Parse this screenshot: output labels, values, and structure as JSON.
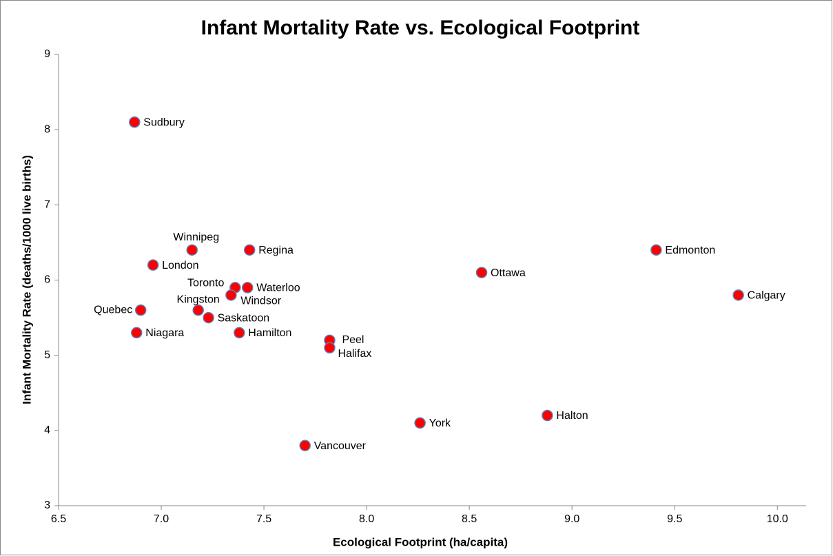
{
  "chart_data": {
    "type": "scatter",
    "title": "Infant Mortality Rate vs. Ecological Footprint",
    "x_label": "Ecological Footprint (ha/capita)",
    "y_label": "Infant Mortality Rate (deaths/1000 live births)",
    "xlim": [
      6.5,
      10.14
    ],
    "ylim": [
      3,
      9
    ],
    "xticks": [
      6.5,
      {
        "value": 7,
        "label": "7.0"
      },
      7.5,
      {
        "value": 8,
        "label": "8.0"
      },
      8.5,
      {
        "value": 9,
        "label": "9.0"
      },
      9.5,
      {
        "value": 10,
        "label": "10.0"
      }
    ],
    "yticks": [
      3,
      4,
      5,
      6,
      7,
      8,
      9
    ],
    "grid": false,
    "series": [
      {
        "color": "#ff0000",
        "labels": [
          "Sudbury",
          "Winnipeg",
          "Regina",
          "London",
          "Toronto",
          "Waterloo",
          "Windsor",
          "Kingston",
          "Quebec",
          "Saskatoon",
          "Niagara",
          "Hamilton",
          "Peel",
          "Halifax",
          "Ottawa",
          "Edmonton",
          "Calgary",
          "Halton",
          "York",
          "Vancouver"
        ],
        "x": [
          6.87,
          7.15,
          7.43,
          6.96,
          7.36,
          7.42,
          7.34,
          7.18,
          6.9,
          7.23,
          6.88,
          7.38,
          7.82,
          7.82,
          8.56,
          9.41,
          9.81,
          8.88,
          8.26,
          7.7
        ],
        "values": [
          8.1,
          6.4,
          6.4,
          6.2,
          5.9,
          5.9,
          5.8,
          5.6,
          5.6,
          5.5,
          5.3,
          5.3,
          5.2,
          5.1,
          6.1,
          6.4,
          5.8,
          4.2,
          4.1,
          3.8
        ]
      }
    ]
  }
}
